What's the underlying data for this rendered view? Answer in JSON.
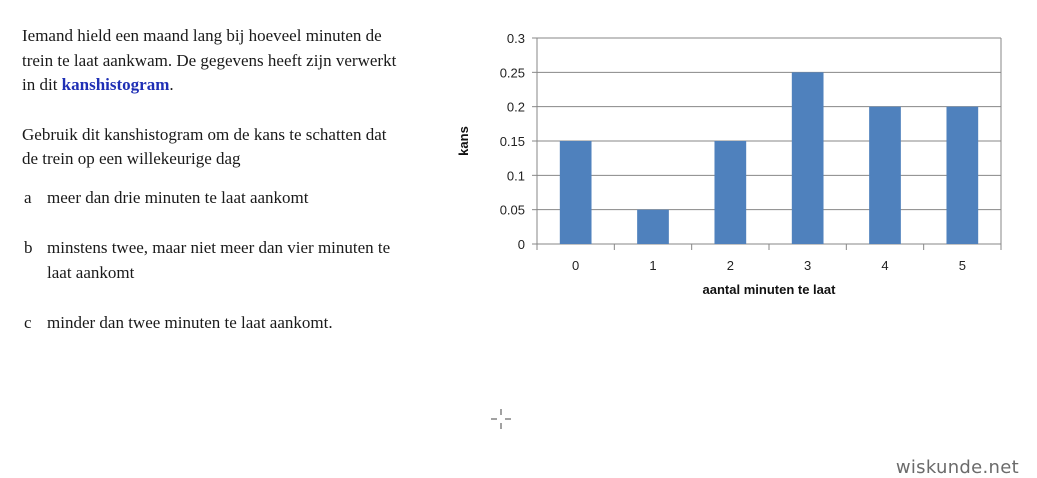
{
  "intro": {
    "text": "Iemand hield een maand lang bij hoeveel minuten de trein te laat aankwam. De gegevens heeft zijn verwerkt in dit ",
    "link": "kanshistogram",
    "end": "."
  },
  "instruction": "Gebruik dit kanshistogram om de kans te schatten dat de trein op een willekeurige dag",
  "questions": [
    {
      "letter": "a",
      "text": "meer dan drie minuten te laat aankomt"
    },
    {
      "letter": "b",
      "text": "minstens twee, maar niet meer dan vier minuten te laat aankomt"
    },
    {
      "letter": "c",
      "text": "minder dan twee minuten te laat aankomt."
    }
  ],
  "watermark": "wiskunde.net",
  "colors": {
    "bar": "#4f81bd",
    "link": "#1f2fb5",
    "grid": "#878787"
  },
  "chart_data": {
    "type": "bar",
    "categories": [
      "0",
      "1",
      "2",
      "3",
      "4",
      "5"
    ],
    "values": [
      0.15,
      0.05,
      0.15,
      0.25,
      0.2,
      0.2
    ],
    "yticks": [
      "0",
      "0.05",
      "0.1",
      "0.15",
      "0.2",
      "0.25",
      "0.3"
    ],
    "ylim": [
      0,
      0.3
    ],
    "xlabel": "aantal minuten te laat",
    "ylabel": "kans",
    "grid": true,
    "legend": "none"
  }
}
